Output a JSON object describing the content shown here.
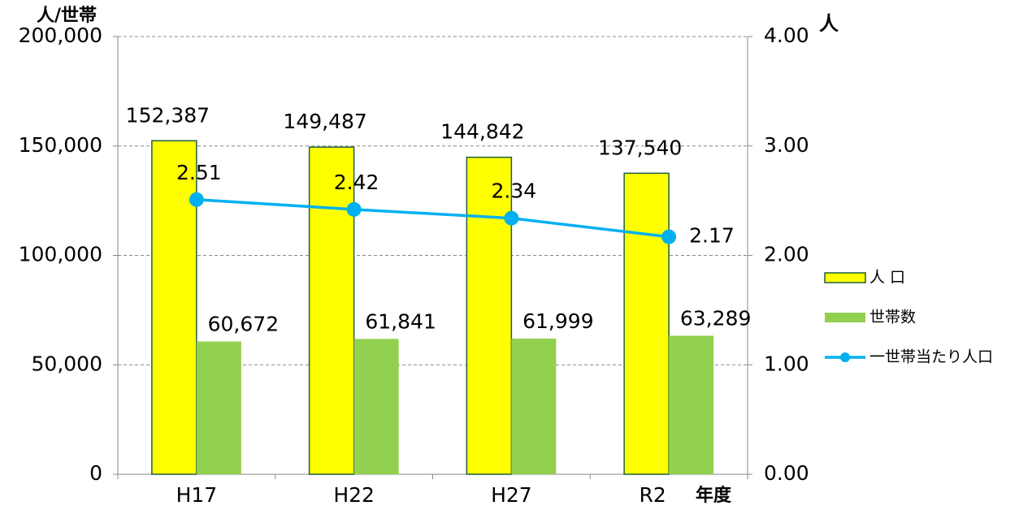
{
  "chart_data": {
    "type": "bar",
    "y_label": "人/世帯",
    "y2_label": "人",
    "x_label": "年度",
    "categories": [
      "H17",
      "H22",
      "H27",
      "R2"
    ],
    "series": [
      {
        "name": "人 口",
        "type": "bar",
        "color": "#ffff00",
        "edge_color": "#1f5f3f",
        "values": [
          152387,
          149487,
          144842,
          137540
        ],
        "value_labels": [
          "152,387",
          "149,487",
          "144,842",
          "137,540"
        ]
      },
      {
        "name": "世帯数",
        "type": "bar",
        "color": "#92d050",
        "values": [
          60672,
          61841,
          61999,
          63289
        ],
        "value_labels": [
          "60,672",
          "61,841",
          "61,999",
          "63,289"
        ]
      },
      {
        "name": "一世帯当たり人口",
        "type": "line",
        "axis": "y2",
        "color": "#00b0f0",
        "values": [
          2.51,
          2.42,
          2.34,
          2.17
        ]
      }
    ],
    "ylim": [
      0,
      200000
    ],
    "yticks": [
      0,
      {
        "value": 50000,
        "label": "50,000"
      },
      {
        "value": 100000,
        "label": "100,000"
      },
      {
        "value": 150000,
        "label": "150,000"
      },
      {
        "value": 200000,
        "label": "200,000"
      }
    ],
    "y2lim": [
      0,
      4
    ],
    "y2ticks": [
      {
        "value": 0,
        "label": "0.00"
      },
      {
        "value": 1,
        "label": "1.00"
      },
      {
        "value": 2,
        "label": "2.00"
      },
      {
        "value": 3,
        "label": "3.00"
      },
      {
        "value": 4,
        "label": "4.00"
      }
    ],
    "grid": true,
    "legend": "right"
  }
}
